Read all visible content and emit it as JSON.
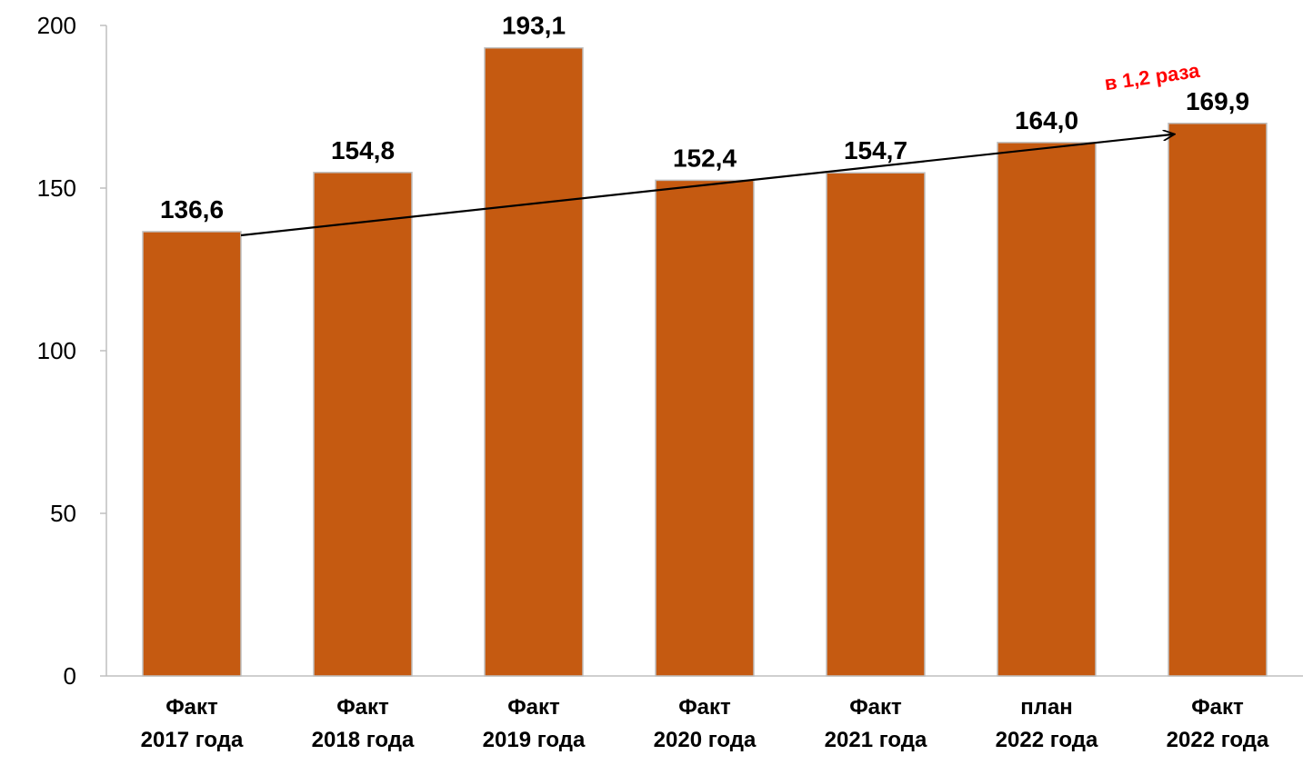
{
  "chart_data": {
    "type": "bar",
    "title": "",
    "xlabel": "",
    "ylabel": "",
    "ylim": [
      0,
      200
    ],
    "yticks": [
      0,
      50,
      100,
      150,
      200
    ],
    "ytick_labels": [
      "0",
      "50",
      "100",
      "150",
      "200"
    ],
    "grid": false,
    "legend": "none",
    "categories": [
      [
        "Факт",
        "2017 года"
      ],
      [
        "Факт",
        "2018 года"
      ],
      [
        "Факт",
        "2019 года"
      ],
      [
        "Факт",
        "2020 года"
      ],
      [
        "Факт",
        "2021 года"
      ],
      [
        "план",
        "2022 года"
      ],
      [
        "Факт",
        "2022 года"
      ]
    ],
    "values": [
      136.6,
      154.8,
      193.1,
      152.4,
      154.7,
      164.0,
      169.9
    ],
    "value_labels": [
      "136,6",
      "154,8",
      "193,1",
      "152,4",
      "154,7",
      "164,0",
      "169,9"
    ],
    "bar_color": "#C55A11",
    "bar_edge_color": "#BFBFBF",
    "annotation": {
      "text": "в 1,2 раза",
      "color": "#FF0000",
      "arrow_from_category": 0,
      "arrow_to_category": 6
    }
  }
}
